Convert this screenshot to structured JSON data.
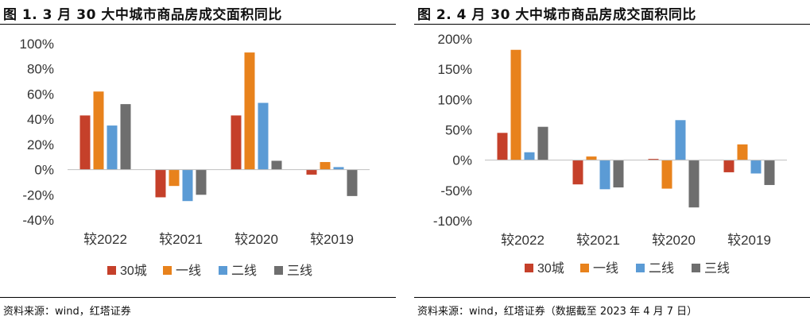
{
  "panels": [
    {
      "title": "图 1. 3 月 30 大中城市商品房成交面积同比",
      "source": "资料来源：wind，红塔证券"
    },
    {
      "title": "图 2. 4 月 30 大中城市商品房成交面积同比",
      "source": "资料来源：wind，红塔证券（数据截至 2023 年 4 月 7 日）"
    }
  ],
  "colors": {
    "30城": "#C5402A",
    "一线": "#E8821C",
    "二线": "#5B9BD5",
    "三线": "#6E6E6E"
  },
  "chart_data": [
    {
      "type": "bar",
      "title": "图 1. 3 月 30 大中城市商品房成交面积同比",
      "categories": [
        "较2022",
        "较2021",
        "较2020",
        "较2019"
      ],
      "series": [
        {
          "name": "30城",
          "values": [
            43,
            -22,
            43,
            -4
          ]
        },
        {
          "name": "一线",
          "values": [
            62,
            -13,
            93,
            6
          ]
        },
        {
          "name": "二线",
          "values": [
            35,
            -25,
            53,
            2
          ]
        },
        {
          "name": "三线",
          "values": [
            52,
            -20,
            7,
            -21
          ]
        }
      ],
      "ylim": [
        -40,
        100
      ],
      "yticks": [
        "-40%",
        "-20%",
        "0%",
        "20%",
        "40%",
        "60%",
        "80%",
        "100%"
      ],
      "ytick_values": [
        -40,
        -20,
        0,
        20,
        40,
        60,
        80,
        100
      ],
      "grid": false,
      "legend": "bottom"
    },
    {
      "type": "bar",
      "title": "图 2. 4 月 30 大中城市商品房成交面积同比",
      "categories": [
        "较2022",
        "较2021",
        "较2020",
        "较2019"
      ],
      "series": [
        {
          "name": "30城",
          "values": [
            45,
            -40,
            2,
            -20
          ]
        },
        {
          "name": "一线",
          "values": [
            182,
            6,
            -47,
            26
          ]
        },
        {
          "name": "二线",
          "values": [
            13,
            -48,
            66,
            -22
          ]
        },
        {
          "name": "三线",
          "values": [
            55,
            -45,
            -78,
            -41
          ]
        }
      ],
      "ylim": [
        -100,
        200
      ],
      "yticks": [
        "-100%",
        "-50%",
        "0%",
        "50%",
        "100%",
        "150%",
        "200%"
      ],
      "ytick_values": [
        -100,
        -50,
        0,
        50,
        100,
        150,
        200
      ],
      "grid": false,
      "legend": "bottom"
    }
  ]
}
